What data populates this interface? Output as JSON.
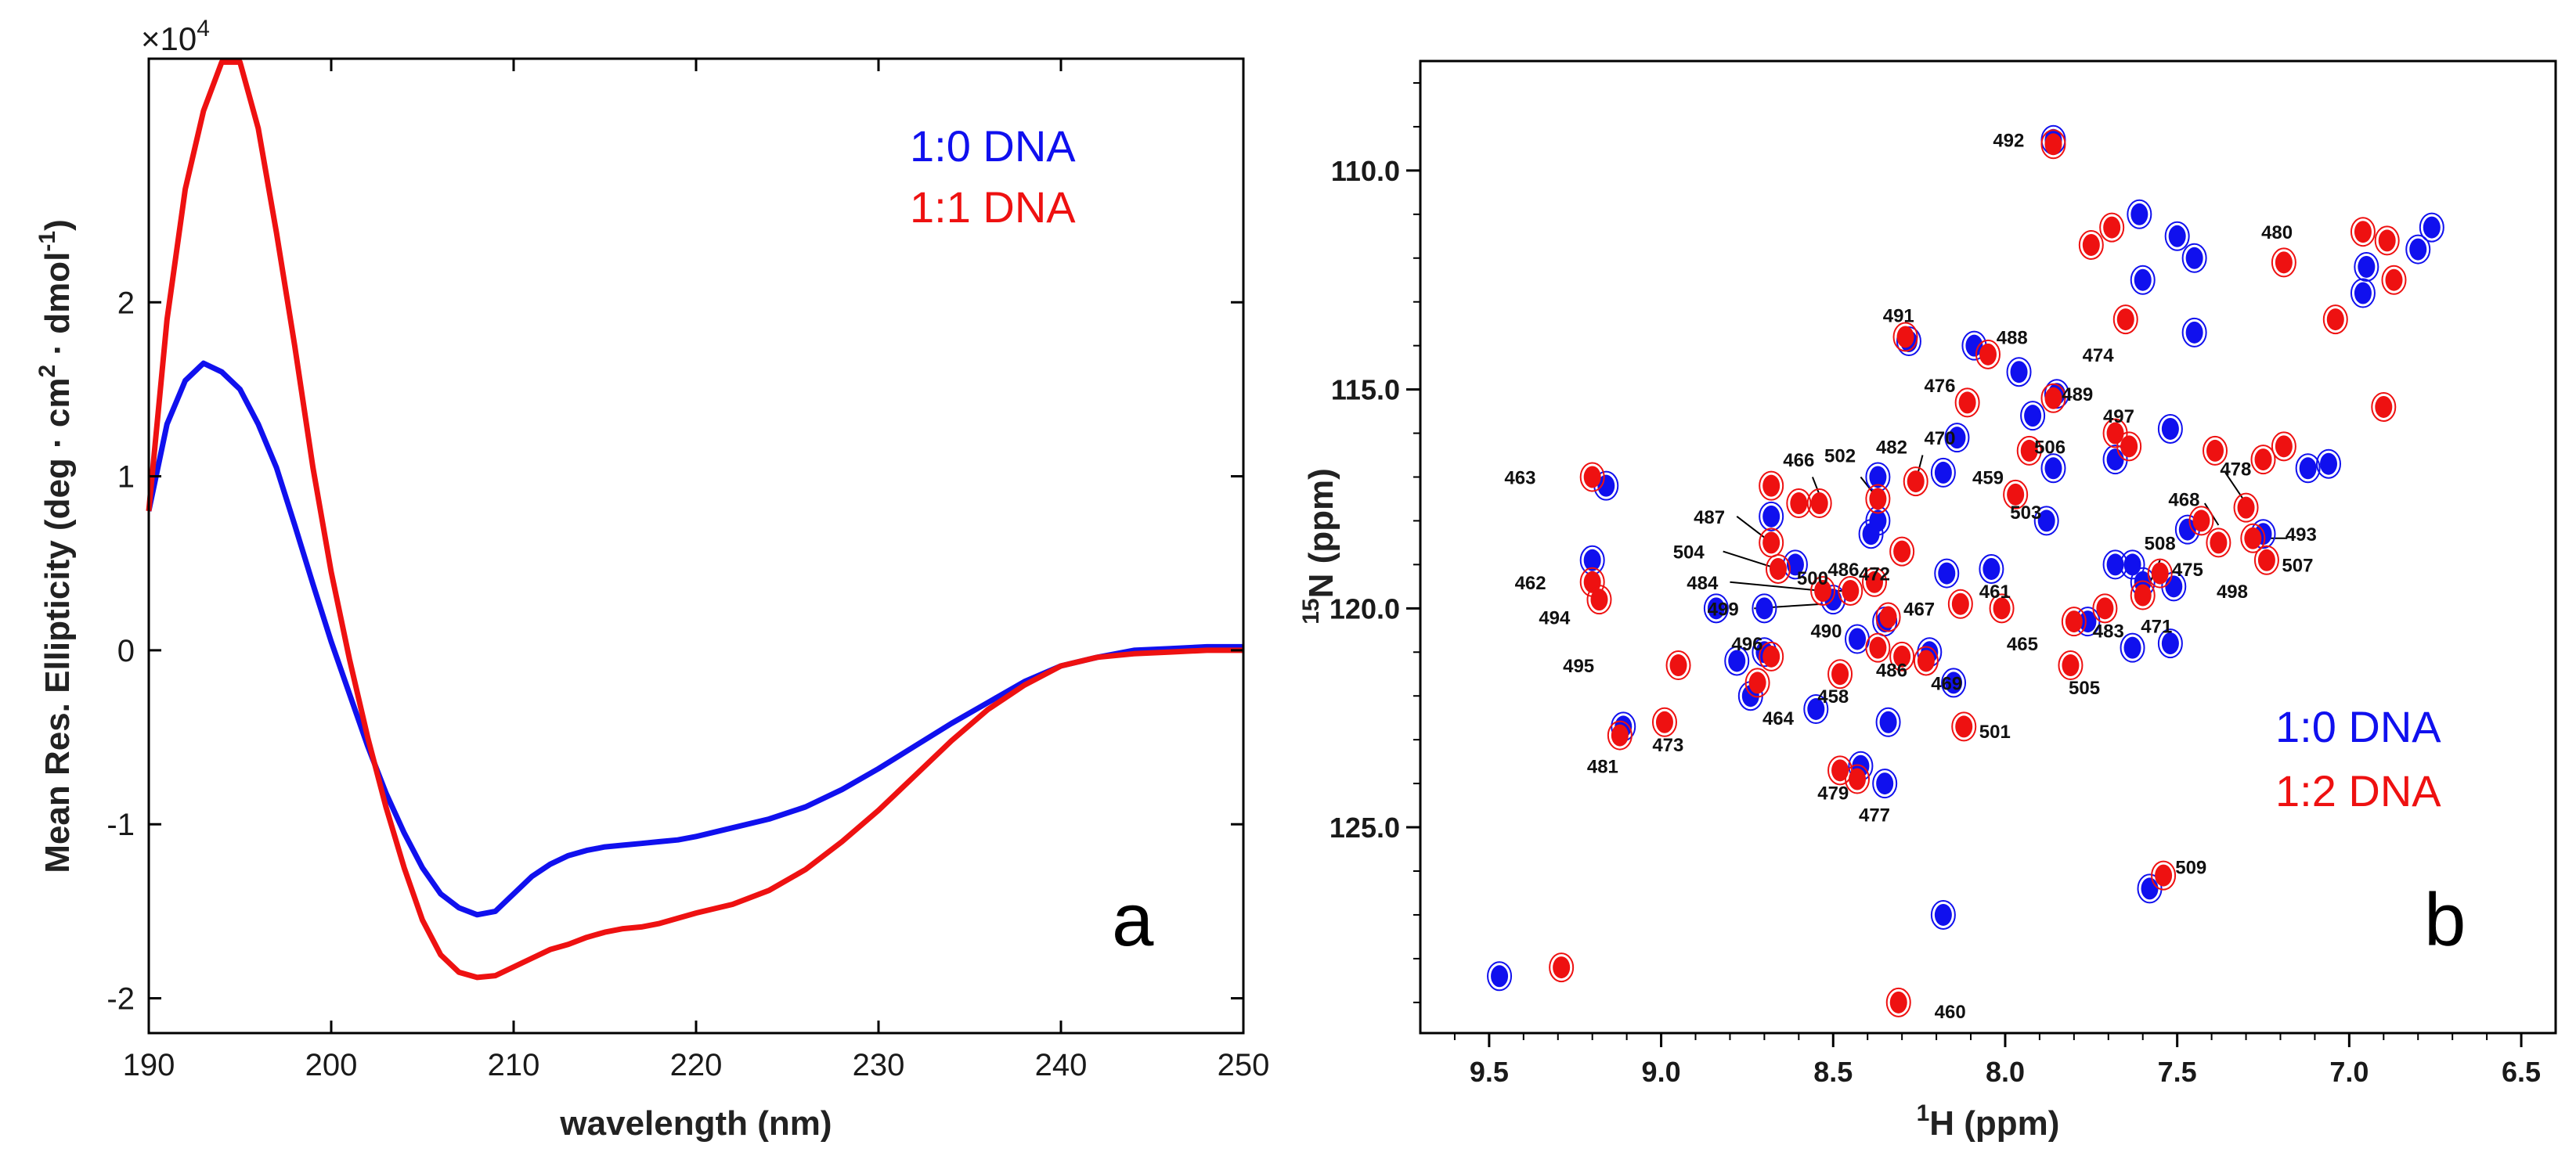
{
  "colors": {
    "blue": "#1010ee",
    "red": "#ee1111",
    "axis": "#000000"
  },
  "chart_data": [
    {
      "type": "line",
      "panel": "a",
      "title": "",
      "xlabel": "wavelength (nm)",
      "ylabel": "Mean Res. Ellipticity (deg · cm² · dmol⁻¹)",
      "ylabel_parts": {
        "main": "Mean Res. Ellipticity (deg · cm",
        "sup1": "2",
        "mid": " · dmol",
        "sup2": "-1",
        "end": ")"
      },
      "multiplier": "×10",
      "multiplier_exp": "4",
      "xlim": [
        190,
        250
      ],
      "ylim": [
        -2.2,
        3.4
      ],
      "xticks": [
        190,
        200,
        210,
        220,
        230,
        240,
        250
      ],
      "yticks": [
        -2,
        -1,
        0,
        1,
        2
      ],
      "x": [
        190,
        191,
        192,
        193,
        194,
        195,
        196,
        197,
        198,
        199,
        200,
        201,
        202,
        203,
        204,
        205,
        206,
        207,
        208,
        209,
        210,
        211,
        212,
        213,
        214,
        215,
        216,
        217,
        218,
        219,
        220,
        222,
        224,
        226,
        228,
        230,
        232,
        234,
        236,
        238,
        240,
        242,
        244,
        246,
        248,
        250
      ],
      "series": [
        {
          "name": "1:0 DNA",
          "color": "blue",
          "values": [
            0.8,
            1.3,
            1.55,
            1.65,
            1.6,
            1.5,
            1.3,
            1.05,
            0.72,
            0.38,
            0.05,
            -0.25,
            -0.55,
            -0.82,
            -1.05,
            -1.25,
            -1.4,
            -1.48,
            -1.52,
            -1.5,
            -1.4,
            -1.3,
            -1.23,
            -1.18,
            -1.15,
            -1.13,
            -1.12,
            -1.11,
            -1.1,
            -1.09,
            -1.07,
            -1.02,
            -0.97,
            -0.9,
            -0.8,
            -0.68,
            -0.55,
            -0.42,
            -0.3,
            -0.18,
            -0.09,
            -0.04,
            0.0,
            0.01,
            0.02,
            0.02
          ]
        },
        {
          "name": "1:1 DNA",
          "color": "red",
          "values": [
            0.8,
            1.9,
            2.65,
            3.1,
            3.38,
            3.38,
            3.0,
            2.4,
            1.75,
            1.05,
            0.45,
            -0.05,
            -0.5,
            -0.9,
            -1.25,
            -1.55,
            -1.75,
            -1.85,
            -1.88,
            -1.87,
            -1.82,
            -1.77,
            -1.72,
            -1.69,
            -1.65,
            -1.62,
            -1.6,
            -1.59,
            -1.57,
            -1.54,
            -1.51,
            -1.46,
            -1.38,
            -1.26,
            -1.1,
            -0.92,
            -0.72,
            -0.52,
            -0.34,
            -0.2,
            -0.09,
            -0.04,
            -0.02,
            -0.01,
            0.0,
            0.0
          ]
        }
      ],
      "legend": [
        "1:0 DNA",
        "1:1 DNA"
      ],
      "legend_position": "top-right"
    },
    {
      "type": "scatter",
      "panel": "b",
      "title": "",
      "xlabel_sup": "1",
      "xlabel": "H (ppm)",
      "ylabel_sup": "15",
      "ylabel": "N (ppm)",
      "xlim": [
        9.7,
        6.4
      ],
      "ylim": [
        129.7,
        107.5
      ],
      "xticks": [
        "9.5",
        "9.0",
        "8.5",
        "8.0",
        "7.5",
        "7.0",
        "6.5"
      ],
      "yticks": [
        "110.0",
        "115.0",
        "120.0",
        "125.0"
      ],
      "xtick_values": [
        9.5,
        9.0,
        8.5,
        8.0,
        7.5,
        7.0,
        6.5
      ],
      "ytick_values": [
        110,
        115,
        120,
        125
      ],
      "legend": [
        "1:0 DNA",
        "1:2 DNA"
      ],
      "legend_position": "bottom-right",
      "peaks_red": [
        [
          7.86,
          109.4
        ],
        [
          7.69,
          111.3
        ],
        [
          7.75,
          111.7
        ],
        [
          7.19,
          112.1
        ],
        [
          7.65,
          113.4
        ],
        [
          6.96,
          111.4
        ],
        [
          6.89,
          111.6
        ],
        [
          6.87,
          112.5
        ],
        [
          7.04,
          113.4
        ],
        [
          6.9,
          115.4
        ],
        [
          8.29,
          113.8
        ],
        [
          8.05,
          114.2
        ],
        [
          7.86,
          115.2
        ],
        [
          8.11,
          115.3
        ],
        [
          7.68,
          116.0
        ],
        [
          7.64,
          116.3
        ],
        [
          7.93,
          116.4
        ],
        [
          7.97,
          117.4
        ],
        [
          8.26,
          117.1
        ],
        [
          8.37,
          117.5
        ],
        [
          8.54,
          117.6
        ],
        [
          8.6,
          117.6
        ],
        [
          9.2,
          117.0
        ],
        [
          8.68,
          118.5
        ],
        [
          8.66,
          119.1
        ],
        [
          8.53,
          119.6
        ],
        [
          8.45,
          119.6
        ],
        [
          8.38,
          119.4
        ],
        [
          8.3,
          118.7
        ],
        [
          8.13,
          119.9
        ],
        [
          8.01,
          120.0
        ],
        [
          7.8,
          120.3
        ],
        [
          7.71,
          120.0
        ],
        [
          7.6,
          119.7
        ],
        [
          7.55,
          119.2
        ],
        [
          7.43,
          118.0
        ],
        [
          7.38,
          118.5
        ],
        [
          7.3,
          117.7
        ],
        [
          7.28,
          118.4
        ],
        [
          7.24,
          118.9
        ],
        [
          7.39,
          116.4
        ],
        [
          7.25,
          116.6
        ],
        [
          7.19,
          116.3
        ],
        [
          9.2,
          119.4
        ],
        [
          9.18,
          119.8
        ],
        [
          8.95,
          121.3
        ],
        [
          8.72,
          121.7
        ],
        [
          8.68,
          121.1
        ],
        [
          8.48,
          121.5
        ],
        [
          8.37,
          120.9
        ],
        [
          8.3,
          121.1
        ],
        [
          8.23,
          121.2
        ],
        [
          7.81,
          121.3
        ],
        [
          8.12,
          122.7
        ],
        [
          9.12,
          122.9
        ],
        [
          8.99,
          122.6
        ],
        [
          8.48,
          123.7
        ],
        [
          8.43,
          123.9
        ],
        [
          7.54,
          126.1
        ],
        [
          9.29,
          128.2
        ],
        [
          8.31,
          129.0
        ],
        [
          8.34,
          120.2
        ],
        [
          8.68,
          117.2
        ]
      ],
      "peaks_blue": [
        [
          7.86,
          109.3
        ],
        [
          7.61,
          111.0
        ],
        [
          7.5,
          111.5
        ],
        [
          7.45,
          112.0
        ],
        [
          7.6,
          112.5
        ],
        [
          7.45,
          113.7
        ],
        [
          6.96,
          112.8
        ],
        [
          6.76,
          111.3
        ],
        [
          6.8,
          111.8
        ],
        [
          6.95,
          112.2
        ],
        [
          8.28,
          113.9
        ],
        [
          8.09,
          114.0
        ],
        [
          7.96,
          114.6
        ],
        [
          7.85,
          115.1
        ],
        [
          7.92,
          115.6
        ],
        [
          8.14,
          116.1
        ],
        [
          7.52,
          115.9
        ],
        [
          7.68,
          116.6
        ],
        [
          7.86,
          116.8
        ],
        [
          8.37,
          117.0
        ],
        [
          8.18,
          116.9
        ],
        [
          9.16,
          117.2
        ],
        [
          8.68,
          117.9
        ],
        [
          8.61,
          119.0
        ],
        [
          8.5,
          119.8
        ],
        [
          8.39,
          118.3
        ],
        [
          8.37,
          118.0
        ],
        [
          8.17,
          119.2
        ],
        [
          8.04,
          119.1
        ],
        [
          7.88,
          118.0
        ],
        [
          7.68,
          119.0
        ],
        [
          7.63,
          119.0
        ],
        [
          7.51,
          119.5
        ],
        [
          7.6,
          119.4
        ],
        [
          7.47,
          118.2
        ],
        [
          7.25,
          118.3
        ],
        [
          7.06,
          116.7
        ],
        [
          7.12,
          116.8
        ],
        [
          9.2,
          118.9
        ],
        [
          8.84,
          120.0
        ],
        [
          8.78,
          121.2
        ],
        [
          8.7,
          121.0
        ],
        [
          8.74,
          122.0
        ],
        [
          8.55,
          122.3
        ],
        [
          8.35,
          120.3
        ],
        [
          8.22,
          121.0
        ],
        [
          8.15,
          121.7
        ],
        [
          7.76,
          120.3
        ],
        [
          7.63,
          120.9
        ],
        [
          7.52,
          120.8
        ],
        [
          8.42,
          123.6
        ],
        [
          8.35,
          124.0
        ],
        [
          8.34,
          122.6
        ],
        [
          9.11,
          122.7
        ],
        [
          8.18,
          127.0
        ],
        [
          7.58,
          126.4
        ],
        [
          9.47,
          128.4
        ],
        [
          8.43,
          120.7
        ],
        [
          8.7,
          120.0
        ]
      ],
      "labels": [
        {
          "text": "492",
          "ppm": [
            7.99,
            109.3
          ]
        },
        {
          "text": "480",
          "ppm": [
            7.21,
            111.4
          ]
        },
        {
          "text": "491",
          "ppm": [
            8.31,
            113.3
          ]
        },
        {
          "text": "488",
          "ppm": [
            7.98,
            113.8
          ]
        },
        {
          "text": "474",
          "ppm": [
            7.73,
            114.2
          ]
        },
        {
          "text": "476",
          "ppm": [
            8.19,
            114.9
          ]
        },
        {
          "text": "489",
          "ppm": [
            7.79,
            115.1
          ]
        },
        {
          "text": "497",
          "ppm": [
            7.67,
            115.6
          ]
        },
        {
          "text": "506",
          "ppm": [
            7.87,
            116.3
          ]
        },
        {
          "text": "466",
          "ppm": [
            8.6,
            116.6
          ]
        },
        {
          "text": "502",
          "ppm": [
            8.48,
            116.5
          ]
        },
        {
          "text": "482",
          "ppm": [
            8.33,
            116.3
          ]
        },
        {
          "text": "470",
          "ppm": [
            8.19,
            116.1
          ]
        },
        {
          "text": "463",
          "ppm": [
            9.41,
            117.0
          ]
        },
        {
          "text": "459",
          "ppm": [
            8.05,
            117.0
          ]
        },
        {
          "text": "478",
          "ppm": [
            7.33,
            116.8
          ]
        },
        {
          "text": "468",
          "ppm": [
            7.48,
            117.5
          ]
        },
        {
          "text": "503",
          "ppm": [
            7.94,
            117.8
          ]
        },
        {
          "text": "487",
          "ppm": [
            8.86,
            117.9
          ]
        },
        {
          "text": "508",
          "ppm": [
            7.55,
            118.5
          ]
        },
        {
          "text": "493",
          "ppm": [
            7.14,
            118.3
          ]
        },
        {
          "text": "504",
          "ppm": [
            8.92,
            118.7
          ]
        },
        {
          "text": "486",
          "ppm": [
            8.47,
            119.1
          ]
        },
        {
          "text": "475",
          "ppm": [
            7.47,
            119.1
          ]
        },
        {
          "text": "507",
          "ppm": [
            7.15,
            119.0
          ]
        },
        {
          "text": "500",
          "ppm": [
            8.56,
            119.3
          ]
        },
        {
          "text": "472",
          "ppm": [
            8.38,
            119.2
          ]
        },
        {
          "text": "498",
          "ppm": [
            7.34,
            119.6
          ]
        },
        {
          "text": "462",
          "ppm": [
            9.38,
            119.4
          ]
        },
        {
          "text": "484",
          "ppm": [
            8.88,
            119.4
          ]
        },
        {
          "text": "461",
          "ppm": [
            8.03,
            119.6
          ]
        },
        {
          "text": "499",
          "ppm": [
            8.82,
            120.0
          ]
        },
        {
          "text": "467",
          "ppm": [
            8.25,
            120.0
          ]
        },
        {
          "text": "494",
          "ppm": [
            9.31,
            120.2
          ]
        },
        {
          "text": "471",
          "ppm": [
            7.56,
            120.4
          ]
        },
        {
          "text": "483",
          "ppm": [
            7.7,
            120.5
          ]
        },
        {
          "text": "490",
          "ppm": [
            8.52,
            120.5
          ]
        },
        {
          "text": "465",
          "ppm": [
            7.95,
            120.8
          ]
        },
        {
          "text": "496",
          "ppm": [
            8.75,
            120.8
          ]
        },
        {
          "text": "495",
          "ppm": [
            9.24,
            121.3
          ]
        },
        {
          "text": "486",
          "ppm": [
            8.33,
            121.4
          ]
        },
        {
          "text": "469",
          "ppm": [
            8.17,
            121.7
          ]
        },
        {
          "text": "505",
          "ppm": [
            7.77,
            121.8
          ]
        },
        {
          "text": "458",
          "ppm": [
            8.5,
            122.0
          ]
        },
        {
          "text": "464",
          "ppm": [
            8.66,
            122.5
          ]
        },
        {
          "text": "501",
          "ppm": [
            8.03,
            122.8
          ]
        },
        {
          "text": "473",
          "ppm": [
            8.98,
            123.1
          ]
        },
        {
          "text": "481",
          "ppm": [
            9.17,
            123.6
          ]
        },
        {
          "text": "479",
          "ppm": [
            8.5,
            124.2
          ]
        },
        {
          "text": "477",
          "ppm": [
            8.38,
            124.7
          ]
        },
        {
          "text": "509",
          "ppm": [
            7.46,
            125.9
          ]
        },
        {
          "text": "460",
          "ppm": [
            8.16,
            129.2
          ]
        }
      ],
      "leaders": [
        [
          8.56,
          117.0,
          8.53,
          117.6
        ],
        [
          8.42,
          117.0,
          8.37,
          117.5
        ],
        [
          8.24,
          116.5,
          8.26,
          117.1
        ],
        [
          8.78,
          117.9,
          8.68,
          118.5
        ],
        [
          8.82,
          118.7,
          8.66,
          119.1
        ],
        [
          8.8,
          119.4,
          8.53,
          119.6
        ],
        [
          8.73,
          120.0,
          8.53,
          119.9
        ],
        [
          7.42,
          117.6,
          7.38,
          118.1
        ],
        [
          7.36,
          116.9,
          7.3,
          117.6
        ],
        [
          7.18,
          118.4,
          7.28,
          118.4
        ],
        [
          7.55,
          118.9,
          7.59,
          119.6
        ],
        [
          8.52,
          119.6,
          8.45,
          119.6
        ]
      ]
    }
  ],
  "panel_labels": {
    "a": "a",
    "b": "b"
  }
}
